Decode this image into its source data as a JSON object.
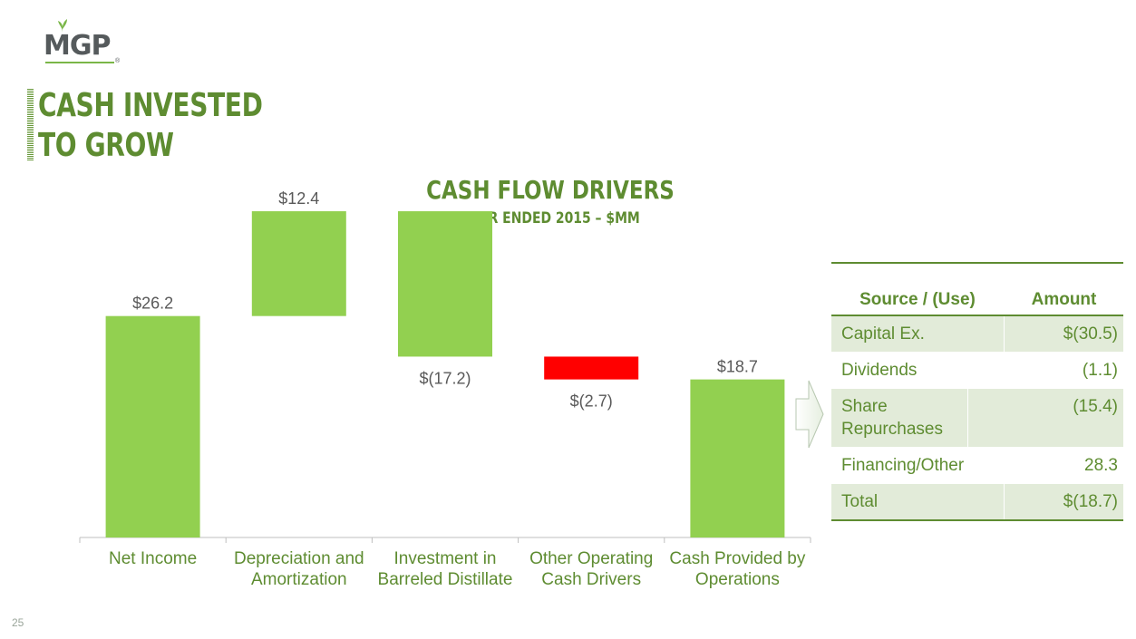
{
  "logo": {
    "text": "MGP",
    "registered": "®"
  },
  "page": {
    "title_line1": "CASH INVESTED",
    "title_line2": "TO GROW",
    "page_number": "25"
  },
  "chart_data": {
    "type": "bar",
    "subtype": "waterfall",
    "title": "CASH FLOW DRIVERS",
    "subtitle": "YEAR ENDED 2015 – $MM",
    "categories": [
      [
        "Net Income"
      ],
      [
        "Depreciation and",
        "Amortization"
      ],
      [
        "Investment in",
        "Barreled Distillate"
      ],
      [
        "Other Operating",
        "Cash Drivers"
      ],
      [
        "Cash Provided by",
        "Operations"
      ]
    ],
    "values": [
      26.2,
      12.4,
      -17.2,
      -2.7,
      18.7
    ],
    "data_labels": [
      "$26.2",
      "$12.4",
      "$(17.2)",
      "$(2.7)",
      "$18.7"
    ],
    "bar_kind": [
      "total",
      "delta",
      "delta",
      "delta",
      "total"
    ],
    "colors": {
      "positive": "#92d050",
      "negative": "#ff0000",
      "axis": "#bfbfbf"
    },
    "ylim": [
      0,
      40
    ],
    "grid": false,
    "legend": "none"
  },
  "table": {
    "headers": [
      "Source / (Use)",
      "Amount"
    ],
    "rows": [
      {
        "label": "Capital Ex.",
        "amount": "$(30.5)"
      },
      {
        "label": "Dividends",
        "amount": "(1.1)"
      },
      {
        "label": "Share Repurchases",
        "amount": "(15.4)"
      },
      {
        "label": "Financing/Other",
        "amount": "28.3"
      },
      {
        "label": "Total",
        "amount": "$(18.7)"
      }
    ]
  },
  "colors": {
    "brand_green": "#5e8c31",
    "table_shade": "#e2ebd9",
    "bar_green": "#92d050",
    "bar_red": "#ff0000"
  }
}
